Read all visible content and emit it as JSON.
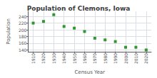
{
  "chart_data": {
    "type": "scatter",
    "title": "Population of Clemons, Iowa",
    "xlabel": "Census Year",
    "ylabel": "Population",
    "x": [
      1910,
      1920,
      1930,
      1940,
      1950,
      1960,
      1970,
      1980,
      1990,
      2000,
      2010,
      2020
    ],
    "values": [
      220,
      225,
      245,
      210,
      205,
      195,
      175,
      170,
      165,
      148,
      148,
      140
    ],
    "color": "#008000",
    "marker": "square",
    "xlim": [
      1905,
      2025
    ],
    "xticks": [
      1910,
      1920,
      1930,
      1940,
      1950,
      1960,
      1970,
      1980,
      1990,
      2000,
      2010,
      2020
    ],
    "ylim": [
      135,
      255
    ],
    "yticks": [
      140,
      160,
      180,
      200,
      220,
      240
    ],
    "grid": true
  }
}
